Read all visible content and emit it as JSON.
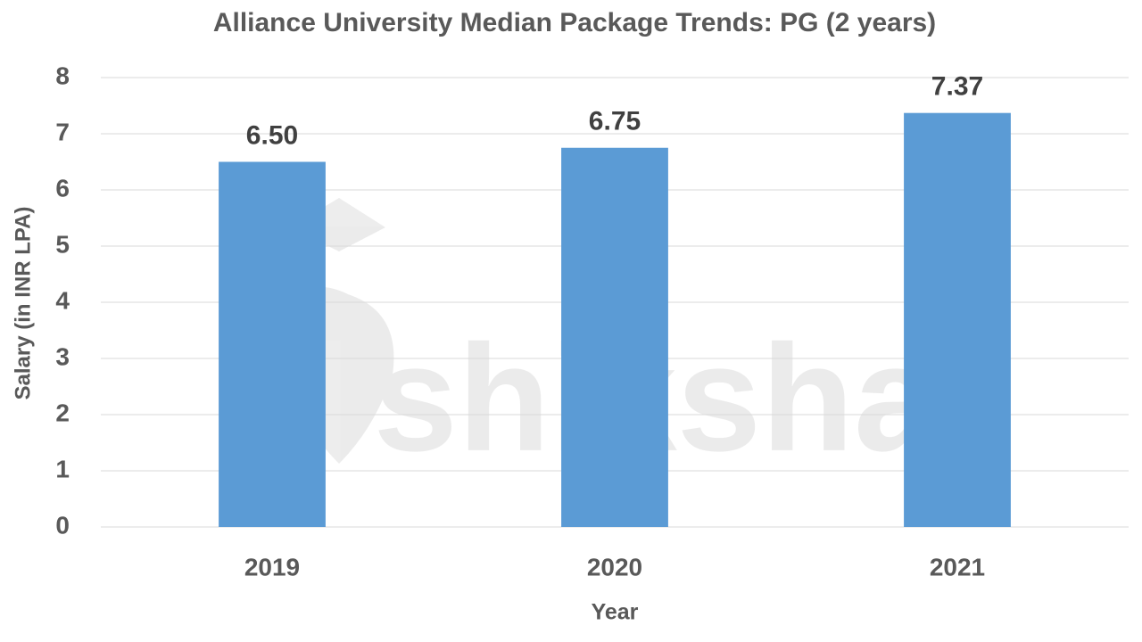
{
  "chart_data": {
    "type": "bar",
    "title": "Alliance University Median Package Trends: PG (2 years)",
    "x_label": "Year",
    "y_label": "Salary (in INR LPA)",
    "categories": [
      "2019",
      "2020",
      "2021"
    ],
    "values": [
      6.5,
      6.75,
      7.37
    ],
    "value_labels": [
      "6.50",
      "6.75",
      "7.37"
    ],
    "color": "#5b9bd5",
    "ylim": [
      0,
      8
    ],
    "yticks": [
      0,
      1,
      2,
      3,
      4,
      5,
      6,
      7,
      8
    ],
    "grid": true,
    "watermark": "shiksha"
  }
}
